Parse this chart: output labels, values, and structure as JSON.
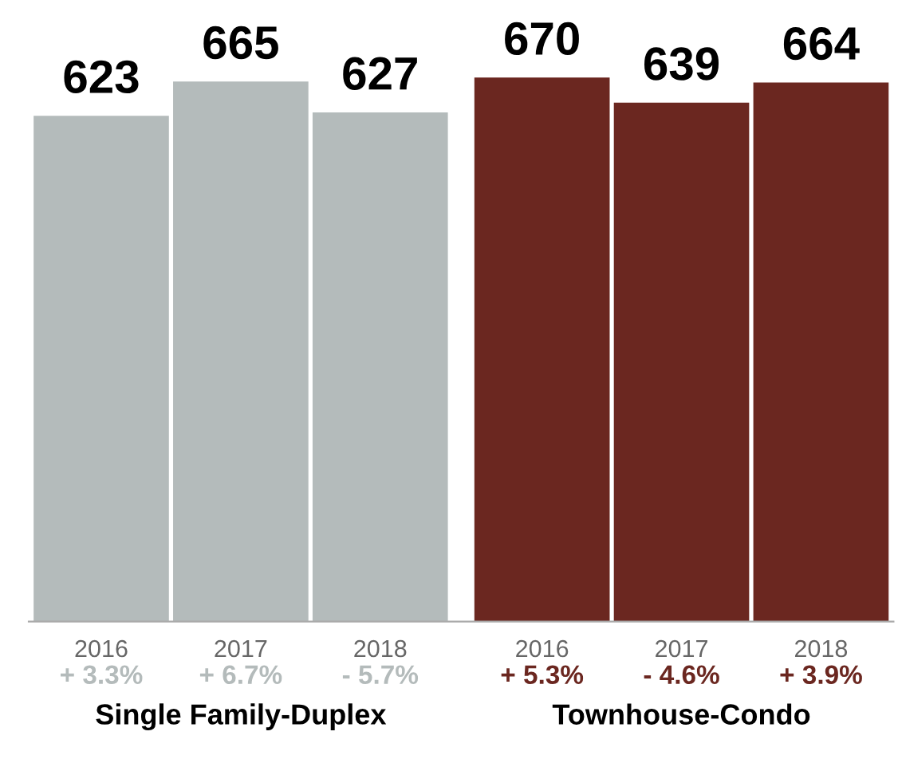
{
  "chart_data": {
    "type": "bar",
    "categories": [
      "2016",
      "2017",
      "2018",
      "2016",
      "2017",
      "2018"
    ],
    "values": [
      623,
      665,
      627,
      670,
      639,
      664
    ],
    "colors": [
      "#b4bbbb",
      "#b4bbbb",
      "#b4bbbb",
      "#6b2720",
      "#6b2720",
      "#6b2720"
    ],
    "data_labels": true,
    "tick_labels": "x",
    "annotations": [
      "+ 3.3%",
      "+ 6.7%",
      "- 5.7%",
      "+ 5.3%",
      "- 4.6%",
      "+ 3.9%",
      "Single Family-Duplex",
      "Townhouse-Condo"
    ],
    "grid": false,
    "legend": false
  }
}
